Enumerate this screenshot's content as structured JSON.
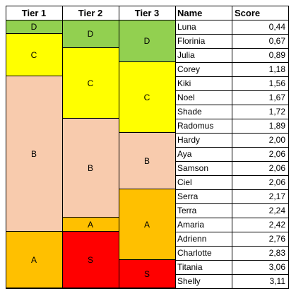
{
  "headers": [
    "Tier 1",
    "Tier 2",
    "Tier 3",
    "Name",
    "Score"
  ],
  "colors": {
    "D": "#92d050",
    "C": "#ffff00",
    "B": "#f8cbad",
    "A": "#ffc000",
    "S": "#ff0000"
  },
  "rows": [
    {
      "name": "Luna",
      "score": "0,44"
    },
    {
      "name": "Florinia",
      "score": "0,67"
    },
    {
      "name": "Julia",
      "score": "0,89"
    },
    {
      "name": "Corey",
      "score": "1,18"
    },
    {
      "name": "Kiki",
      "score": "1,56"
    },
    {
      "name": "Noel",
      "score": "1,67"
    },
    {
      "name": "Shade",
      "score": "1,72"
    },
    {
      "name": "Radomus",
      "score": "1,89"
    },
    {
      "name": "Hardy",
      "score": "2,00"
    },
    {
      "name": "Aya",
      "score": "2,06"
    },
    {
      "name": "Samson",
      "score": "2,06"
    },
    {
      "name": "Ciel",
      "score": "2,06"
    },
    {
      "name": "Serra",
      "score": "2,17"
    },
    {
      "name": "Terra",
      "score": "2,24"
    },
    {
      "name": "Amaria",
      "score": "2,42"
    },
    {
      "name": "Adrienn",
      "score": "2,76"
    },
    {
      "name": "Charlotte",
      "score": "2,83"
    },
    {
      "name": "Titania",
      "score": "3,06"
    },
    {
      "name": "Shelly",
      "score": "3,11"
    }
  ],
  "tier_columns": [
    [
      {
        "label": "D",
        "from": 0,
        "to": 0
      },
      {
        "label": "C",
        "from": 1,
        "to": 3
      },
      {
        "label": "B",
        "from": 4,
        "to": 14
      },
      {
        "label": "A",
        "from": 15,
        "to": 18
      }
    ],
    [
      {
        "label": "D",
        "from": 0,
        "to": 1
      },
      {
        "label": "C",
        "from": 2,
        "to": 6
      },
      {
        "label": "B",
        "from": 7,
        "to": 13
      },
      {
        "label": "A",
        "from": 14,
        "to": 14
      },
      {
        "label": "S",
        "from": 15,
        "to": 18
      }
    ],
    [
      {
        "label": "D",
        "from": 0,
        "to": 2
      },
      {
        "label": "C",
        "from": 3,
        "to": 7
      },
      {
        "label": "B",
        "from": 8,
        "to": 11
      },
      {
        "label": "A",
        "from": 12,
        "to": 16
      },
      {
        "label": "S",
        "from": 17,
        "to": 18
      }
    ]
  ]
}
